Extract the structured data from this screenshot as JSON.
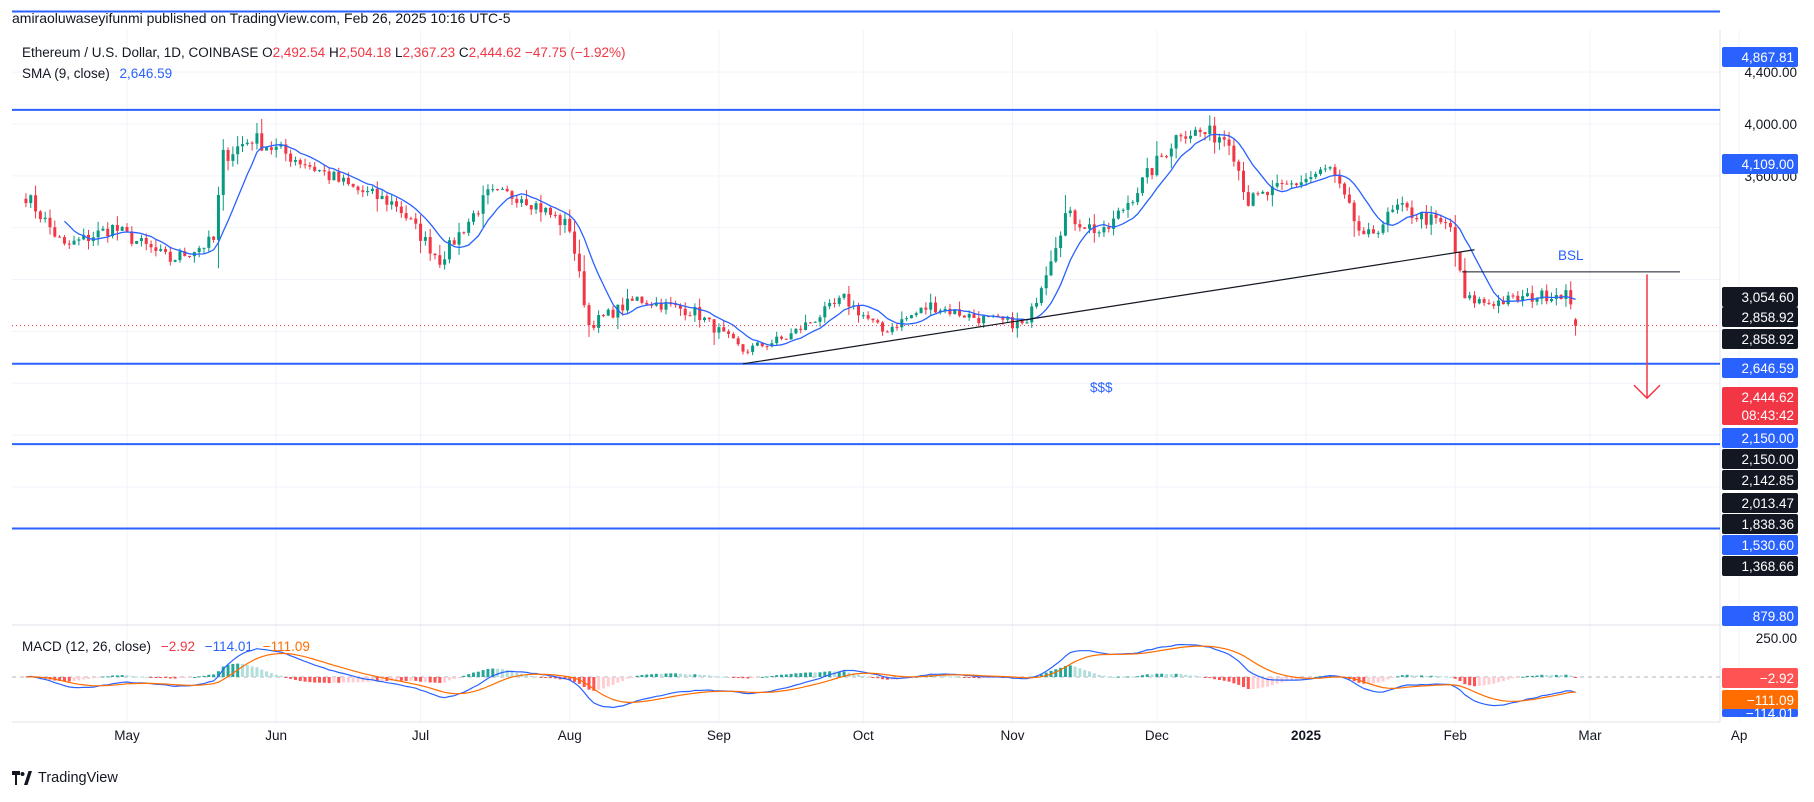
{
  "publisher_line": "amiraoluwaseyifunmi published on TradingView.com, Feb 26, 2025 10:16 UTC-5",
  "symbol_line": {
    "name": "Ethereum / U.S. Dollar, 1D, COINBASE",
    "o_label": "O",
    "o": "2,492.54",
    "h_label": "H",
    "h": "2,504.18",
    "l_label": "L",
    "l": "2,367.23",
    "c_label": "C",
    "c": "2,444.62",
    "change": "−47.75 (−1.92%)"
  },
  "sma_line": {
    "label": "SMA (9, close)",
    "value": "2,646.59"
  },
  "macd_line": {
    "label": "MACD (12, 26, close)",
    "hist": "−2.92",
    "macd": "−114.01",
    "signal": "−111.09"
  },
  "brand": "TradingView",
  "colors": {
    "up": "#089981",
    "down": "#f23645",
    "sma": "#2962ff",
    "level": "#2962ff",
    "macd": "#2962ff",
    "signal": "#ff6d00",
    "arrow": "#f23645"
  },
  "chart_data": {
    "type": "candlestick",
    "symbol": "ETHUSD",
    "timeframe": "1D",
    "x_axis": {
      "ticks": [
        "May",
        "Jun",
        "Jul",
        "Aug",
        "Sep",
        "Oct",
        "Nov",
        "Dec",
        "2025",
        "Feb",
        "Mar",
        "Ap"
      ]
    },
    "y_axis": {
      "ticks": [
        "4,400.00",
        "4,000.00",
        "3,600.00"
      ],
      "range": [
        700,
        4950
      ]
    },
    "ohlc_keypoints": [
      [
        "2024-04-10",
        3450
      ],
      [
        "2024-04-18",
        3050
      ],
      [
        "2024-04-28",
        3200
      ],
      [
        "2024-05-10",
        2950
      ],
      [
        "2024-05-19",
        3100
      ],
      [
        "2024-05-21",
        3750
      ],
      [
        "2024-05-27",
        3890
      ],
      [
        "2024-06-07",
        3700
      ],
      [
        "2024-06-17",
        3500
      ],
      [
        "2024-06-26",
        3380
      ],
      [
        "2024-07-05",
        2950
      ],
      [
        "2024-07-15",
        3450
      ],
      [
        "2024-07-22",
        3450
      ],
      [
        "2024-08-01",
        3200
      ],
      [
        "2024-08-05",
        2450
      ],
      [
        "2024-08-15",
        2650
      ],
      [
        "2024-08-27",
        2550
      ],
      [
        "2024-09-06",
        2250
      ],
      [
        "2024-09-15",
        2350
      ],
      [
        "2024-09-27",
        2650
      ],
      [
        "2024-10-05",
        2400
      ],
      [
        "2024-10-15",
        2600
      ],
      [
        "2024-10-25",
        2500
      ],
      [
        "2024-11-04",
        2450
      ],
      [
        "2024-11-12",
        3300
      ],
      [
        "2024-11-20",
        3150
      ],
      [
        "2024-12-06",
        3950
      ],
      [
        "2024-12-16",
        3900
      ],
      [
        "2024-12-20",
        3400
      ],
      [
        "2025-01-06",
        3650
      ],
      [
        "2025-01-13",
        3100
      ],
      [
        "2025-01-20",
        3350
      ],
      [
        "2025-01-31",
        3200
      ],
      [
        "2025-02-03",
        2650
      ],
      [
        "2025-02-08",
        2620
      ],
      [
        "2025-02-24",
        2700
      ],
      [
        "2025-02-26",
        2444.62
      ]
    ],
    "sma": {
      "period": 9,
      "last": 2646.59
    },
    "horizontal_levels": [
      4867.81,
      4109.0,
      2150.0,
      1530.6,
      879.8
    ],
    "bsl_level": 2858.92,
    "trendline": {
      "from": [
        "2024-09-06",
        2150
      ],
      "to": [
        "2025-02-05",
        3030
      ]
    },
    "projection_arrow": {
      "from": 2840,
      "to": 1885
    },
    "annotations": [
      "BSL",
      "$$$"
    ],
    "price_labels": [
      {
        "value": "4,867.81",
        "style": "blue"
      },
      {
        "value": "4,109.00",
        "style": "blue"
      },
      {
        "value": "3,054.60",
        "style": "dark"
      },
      {
        "value": "2,858.92",
        "style": "dark"
      },
      {
        "value": "2,858.92",
        "style": "dark"
      },
      {
        "value": "2,646.59",
        "style": "blue"
      },
      {
        "value": "2,444.62",
        "style": "red"
      },
      {
        "value": "08:43:42",
        "style": "red"
      },
      {
        "value": "2,150.00",
        "style": "blue"
      },
      {
        "value": "2,150.00",
        "style": "dark"
      },
      {
        "value": "2,142.85",
        "style": "dark"
      },
      {
        "value": "2,013.47",
        "style": "dark"
      },
      {
        "value": "1,838.36",
        "style": "dark"
      },
      {
        "value": "1,530.60",
        "style": "blue"
      },
      {
        "value": "1,368.66",
        "style": "dark"
      },
      {
        "value": "879.80",
        "style": "blue"
      }
    ],
    "macd": {
      "params": [
        12,
        26
      ],
      "axis_tick": "250.00",
      "last": {
        "hist": -2.92,
        "macd": -114.01,
        "signal": -111.09
      },
      "labels": [
        {
          "value": "−2.92",
          "style": "hist"
        },
        {
          "value": "−111.09",
          "style": "signal"
        },
        {
          "value": "−114.01",
          "style": "macd"
        }
      ]
    }
  }
}
